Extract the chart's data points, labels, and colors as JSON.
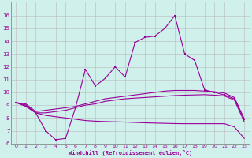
{
  "xlabel": "Windchill (Refroidissement éolien,°C)",
  "x": [
    0,
    1,
    2,
    3,
    4,
    5,
    6,
    7,
    8,
    9,
    10,
    11,
    12,
    13,
    14,
    15,
    16,
    17,
    18,
    19,
    20,
    21,
    22,
    23
  ],
  "line_main": [
    9.2,
    8.9,
    8.4,
    7.0,
    6.3,
    6.4,
    8.8,
    11.8,
    10.5,
    11.1,
    12.0,
    11.2,
    13.9,
    14.3,
    14.4,
    15.0,
    16.0,
    13.0,
    12.5,
    10.2,
    10.0,
    9.8,
    9.5,
    7.9
  ],
  "line_upper": [
    9.2,
    9.1,
    8.5,
    8.6,
    8.7,
    8.8,
    8.9,
    9.1,
    9.3,
    9.5,
    9.6,
    9.7,
    9.8,
    9.9,
    10.0,
    10.1,
    10.15,
    10.15,
    10.15,
    10.1,
    10.05,
    9.95,
    9.6,
    7.9
  ],
  "line_lower": [
    9.2,
    9.0,
    8.4,
    8.2,
    8.1,
    8.0,
    7.9,
    7.8,
    7.75,
    7.72,
    7.7,
    7.68,
    7.65,
    7.62,
    7.6,
    7.58,
    7.56,
    7.55,
    7.55,
    7.55,
    7.55,
    7.55,
    7.3,
    6.4
  ],
  "line_sub": [
    9.2,
    9.0,
    8.4,
    8.4,
    8.5,
    8.6,
    8.8,
    9.0,
    9.1,
    9.3,
    9.4,
    9.5,
    9.55,
    9.6,
    9.65,
    9.7,
    9.75,
    9.78,
    9.8,
    9.82,
    9.78,
    9.72,
    9.4,
    7.7
  ],
  "line_color": "#990099",
  "bg_color": "#cff0eb",
  "grid_color": "#bbbbbb",
  "ylim": [
    6,
    17
  ],
  "xlim": [
    -0.5,
    23.5
  ],
  "yticks": [
    6,
    7,
    8,
    9,
    10,
    11,
    12,
    13,
    14,
    15,
    16
  ],
  "xticks": [
    0,
    1,
    2,
    3,
    4,
    5,
    6,
    7,
    8,
    9,
    10,
    11,
    12,
    13,
    14,
    15,
    16,
    17,
    18,
    19,
    20,
    21,
    22,
    23
  ]
}
